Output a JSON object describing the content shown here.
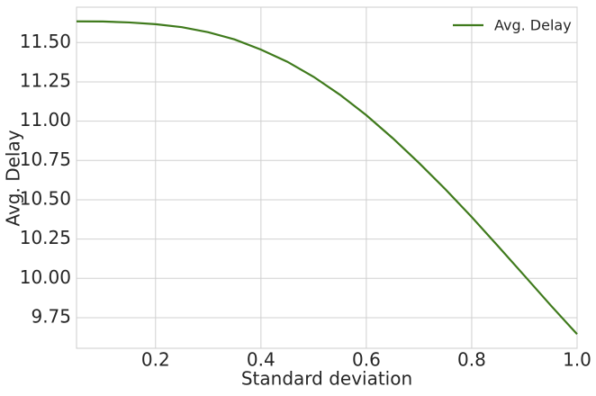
{
  "chart_data": {
    "type": "line",
    "x_label": "Standard deviation",
    "y_label": "Avg. Delay",
    "x": [
      0.05,
      0.1,
      0.15,
      0.2,
      0.25,
      0.3,
      0.35,
      0.4,
      0.45,
      0.5,
      0.55,
      0.6,
      0.65,
      0.7,
      0.75,
      0.8,
      0.85,
      0.9,
      0.95,
      1.0
    ],
    "series": [
      {
        "name": "Avg. Delay",
        "color": "#3f7a1c",
        "values": [
          11.635,
          11.634,
          11.628,
          11.617,
          11.598,
          11.566,
          11.52,
          11.455,
          11.378,
          11.282,
          11.168,
          11.038,
          10.892,
          10.734,
          10.567,
          10.39,
          10.205,
          10.017,
          9.828,
          9.645
        ]
      }
    ],
    "xlim": [
      0.05,
      1.0
    ],
    "ylim": [
      9.555,
      11.725
    ],
    "xticks": [
      0.2,
      0.4,
      0.6,
      0.8,
      {
        "value": 1,
        "label": "1.0"
      }
    ],
    "yticks": [
      9.75,
      {
        "value": 10,
        "label": "10.00"
      },
      10.25,
      {
        "value": 10.5,
        "label": "10.50"
      },
      10.75,
      {
        "value": 11,
        "label": "11.00"
      },
      11.25,
      {
        "value": 11.5,
        "label": "11.50"
      }
    ],
    "grid": true,
    "legend": "upper right"
  }
}
